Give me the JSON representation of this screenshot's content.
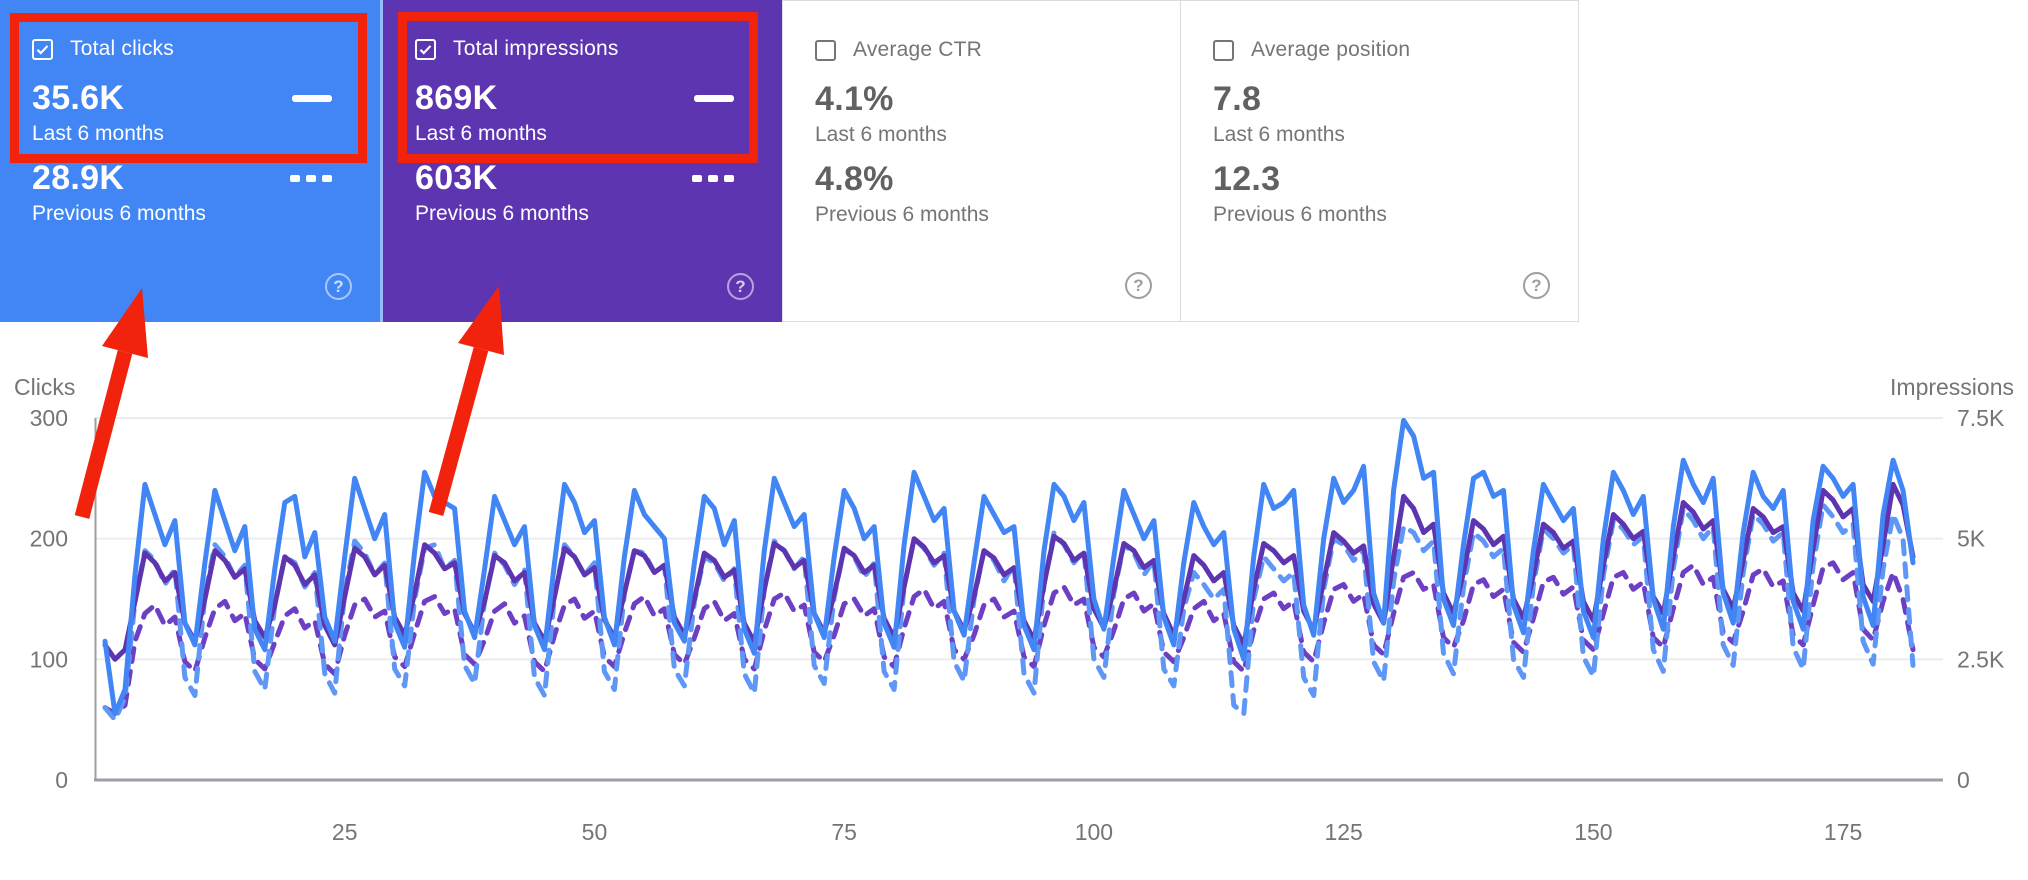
{
  "cards": [
    {
      "id": "total-clicks",
      "label": "Total clicks",
      "checked": true,
      "bg": "#4285f4",
      "value_current": "35.6K",
      "period_current": "Last 6 months",
      "value_previous": "28.9K",
      "period_previous": "Previous 6 months",
      "help_glyph": "?"
    },
    {
      "id": "total-impressions",
      "label": "Total impressions",
      "checked": true,
      "bg": "#5e35b1",
      "value_current": "869K",
      "period_current": "Last 6 months",
      "value_previous": "603K",
      "period_previous": "Previous 6 months",
      "help_glyph": "?"
    },
    {
      "id": "average-ctr",
      "label": "Average CTR",
      "checked": false,
      "bg": "",
      "value_current": "4.1%",
      "period_current": "Last 6 months",
      "value_previous": "4.8%",
      "period_previous": "Previous 6 months",
      "help_glyph": "?"
    },
    {
      "id": "average-position",
      "label": "Average position",
      "checked": false,
      "bg": "",
      "value_current": "7.8",
      "period_current": "Last 6 months",
      "value_previous": "12.3",
      "period_previous": "Previous 6 months",
      "help_glyph": "?"
    }
  ],
  "annotation": {
    "color": "#f1230d"
  },
  "chart_data": {
    "type": "line",
    "grid": true,
    "left_axis": {
      "title": "Clicks",
      "ticks": [
        0,
        100,
        200,
        300
      ],
      "max": 300
    },
    "right_axis": {
      "title": "Impressions",
      "ticks": [
        "0",
        "2.5K",
        "5K",
        "7.5K"
      ],
      "max": 7500
    },
    "x_axis": {
      "ticks": [
        25,
        50,
        75,
        100,
        125,
        150,
        175
      ],
      "max": 185
    },
    "series": [
      {
        "id": "clicks-current",
        "name": "Total clicks — Last 6 months",
        "axis": "left",
        "style": "solid",
        "color": "#4285f4",
        "values": [
          115,
          55,
          75,
          170,
          245,
          220,
          195,
          215,
          130,
          112,
          180,
          240,
          215,
          190,
          210,
          125,
          108,
          175,
          230,
          235,
          185,
          205,
          135,
          115,
          185,
          250,
          225,
          200,
          220,
          130,
          110,
          190,
          255,
          235,
          230,
          225,
          140,
          118,
          175,
          235,
          215,
          195,
          210,
          128,
          108,
          180,
          245,
          230,
          205,
          215,
          135,
          112,
          185,
          240,
          220,
          210,
          200,
          130,
          115,
          180,
          235,
          225,
          195,
          215,
          125,
          105,
          190,
          250,
          230,
          210,
          220,
          138,
          118,
          185,
          240,
          225,
          200,
          210,
          130,
          110,
          195,
          255,
          235,
          215,
          225,
          140,
          120,
          180,
          235,
          220,
          205,
          210,
          128,
          108,
          190,
          245,
          235,
          215,
          230,
          150,
          125,
          185,
          240,
          220,
          200,
          215,
          135,
          112,
          180,
          230,
          210,
          195,
          205,
          125,
          100,
          185,
          245,
          225,
          230,
          240,
          145,
          120,
          200,
          250,
          230,
          240,
          260,
          155,
          130,
          240,
          298,
          285,
          250,
          255,
          150,
          128,
          195,
          250,
          255,
          235,
          240,
          145,
          122,
          190,
          245,
          230,
          215,
          225,
          140,
          118,
          200,
          255,
          240,
          220,
          235,
          150,
          125,
          210,
          265,
          245,
          230,
          250,
          155,
          130,
          205,
          255,
          235,
          225,
          240,
          148,
          125,
          215,
          260,
          250,
          235,
          245,
          152,
          128,
          220,
          265,
          240,
          180
        ]
      },
      {
        "id": "clicks-previous",
        "name": "Total clicks — Previous 6 months",
        "axis": "left",
        "style": "dashed",
        "color": "#5e97f6",
        "values": [
          60,
          50,
          68,
          148,
          190,
          182,
          162,
          175,
          85,
          70,
          152,
          195,
          185,
          168,
          178,
          90,
          75,
          145,
          185,
          180,
          160,
          172,
          88,
          72,
          155,
          198,
          188,
          170,
          180,
          92,
          78,
          150,
          192,
          195,
          175,
          182,
          95,
          80,
          148,
          188,
          178,
          162,
          175,
          85,
          70,
          152,
          195,
          185,
          170,
          180,
          90,
          75,
          155,
          190,
          188,
          172,
          178,
          92,
          78,
          148,
          185,
          180,
          165,
          175,
          88,
          72,
          158,
          198,
          190,
          175,
          185,
          95,
          80,
          152,
          192,
          185,
          168,
          180,
          90,
          75,
          160,
          200,
          192,
          178,
          188,
          98,
          82,
          150,
          190,
          182,
          165,
          178,
          88,
          72,
          162,
          205,
          195,
          180,
          190,
          100,
          85,
          155,
          195,
          188,
          170,
          182,
          92,
          78,
          142,
          172,
          162,
          150,
          158,
          62,
          55,
          150,
          185,
          175,
          165,
          172,
          85,
          70,
          158,
          200,
          195,
          182,
          190,
          98,
          82,
          165,
          210,
          205,
          190,
          198,
          105,
          88,
          160,
          205,
          198,
          185,
          192,
          100,
          85,
          162,
          208,
          200,
          188,
          195,
          102,
          86,
          170,
          215,
          208,
          195,
          202,
          108,
          90,
          175,
          225,
          215,
          200,
          210,
          112,
          95,
          172,
          220,
          212,
          198,
          205,
          110,
          92,
          178,
          228,
          218,
          205,
          212,
          115,
          96,
          175,
          220,
          200,
          95
        ]
      },
      {
        "id": "impressions-current",
        "name": "Total impressions — Last 6 months",
        "axis": "right",
        "style": "solid",
        "color": "#5e35b1",
        "values": [
          2800,
          2500,
          2700,
          3700,
          4700,
          4500,
          4125,
          4300,
          3250,
          2875,
          3750,
          4750,
          4550,
          4200,
          4375,
          3300,
          2950,
          3625,
          4625,
          4450,
          4050,
          4250,
          3200,
          2800,
          3800,
          4800,
          4625,
          4250,
          4450,
          3375,
          3000,
          3875,
          4875,
          4700,
          4375,
          4500,
          3450,
          3050,
          3700,
          4650,
          4500,
          4125,
          4300,
          3250,
          2875,
          3800,
          4800,
          4625,
          4250,
          4400,
          3325,
          2950,
          3875,
          4750,
          4650,
          4300,
          4450,
          3375,
          3000,
          3750,
          4700,
          4550,
          4200,
          4350,
          3250,
          2850,
          3950,
          4900,
          4750,
          4400,
          4550,
          3450,
          3050,
          3850,
          4800,
          4650,
          4300,
          4450,
          3350,
          2950,
          4000,
          5000,
          4825,
          4500,
          4650,
          3500,
          3100,
          3800,
          4750,
          4600,
          4250,
          4400,
          3300,
          2900,
          4050,
          5050,
          4900,
          4550,
          4700,
          3550,
          3150,
          3950,
          4900,
          4750,
          4400,
          4550,
          3450,
          3000,
          3750,
          4650,
          4450,
          4125,
          4300,
          3200,
          2800,
          3950,
          4900,
          4750,
          4500,
          4650,
          3500,
          3100,
          4125,
          5125,
          4950,
          4700,
          4850,
          3650,
          3250,
          4625,
          5875,
          5625,
          5125,
          5300,
          3875,
          3450,
          4300,
          5375,
          5200,
          4875,
          5050,
          3750,
          3350,
          4250,
          5300,
          5125,
          4800,
          4950,
          3700,
          3300,
          4450,
          5500,
          5300,
          5000,
          5150,
          3800,
          3450,
          4625,
          5750,
          5550,
          5200,
          5375,
          3950,
          3550,
          4550,
          5625,
          5450,
          5125,
          5250,
          3875,
          3500,
          4800,
          6000,
          5800,
          5450,
          5625,
          4050,
          3700,
          4875,
          6125,
          5700,
          4625
        ]
      },
      {
        "id": "impressions-previous",
        "name": "Total impressions — Previous 6 months",
        "axis": "right",
        "style": "dashed",
        "color": "#6d3fc4",
        "values": [
          1500,
          1375,
          1550,
          2875,
          3450,
          3625,
          3200,
          3375,
          2450,
          2250,
          2950,
          3550,
          3700,
          3300,
          3450,
          2500,
          2300,
          2850,
          3400,
          3550,
          3150,
          3300,
          2400,
          2200,
          3000,
          3625,
          3750,
          3375,
          3500,
          2550,
          2350,
          3050,
          3700,
          3800,
          3450,
          3550,
          2600,
          2400,
          2900,
          3500,
          3650,
          3250,
          3400,
          2450,
          2250,
          3000,
          3625,
          3750,
          3350,
          3500,
          2550,
          2350,
          3050,
          3650,
          3800,
          3400,
          3550,
          2600,
          2400,
          2950,
          3550,
          3700,
          3300,
          3450,
          2500,
          2300,
          3100,
          3750,
          3875,
          3500,
          3625,
          2650,
          2450,
          3000,
          3650,
          3750,
          3400,
          3550,
          2550,
          2350,
          3150,
          3800,
          3950,
          3550,
          3700,
          2700,
          2500,
          3000,
          3625,
          3750,
          3375,
          3500,
          2550,
          2350,
          3200,
          3875,
          4000,
          3625,
          3750,
          2750,
          2550,
          3100,
          3750,
          3875,
          3500,
          3650,
          2650,
          2450,
          2950,
          3550,
          3700,
          3300,
          3450,
          2450,
          2250,
          3100,
          3750,
          3875,
          3550,
          3700,
          2650,
          2450,
          3250,
          3950,
          4050,
          3700,
          3850,
          2800,
          2600,
          3450,
          4200,
          4300,
          3950,
          4050,
          2950,
          2750,
          3300,
          4050,
          4150,
          3800,
          3950,
          2850,
          2650,
          3350,
          4100,
          4200,
          3850,
          4000,
          2900,
          2700,
          3450,
          4200,
          4300,
          3950,
          4100,
          2950,
          2750,
          3550,
          4300,
          4450,
          4050,
          4200,
          3050,
          2850,
          3500,
          4250,
          4375,
          4000,
          4125,
          3000,
          2800,
          3625,
          4400,
          4500,
          4150,
          4300,
          3125,
          2900,
          3700,
          4300,
          3750,
          2700
        ]
      }
    ]
  }
}
